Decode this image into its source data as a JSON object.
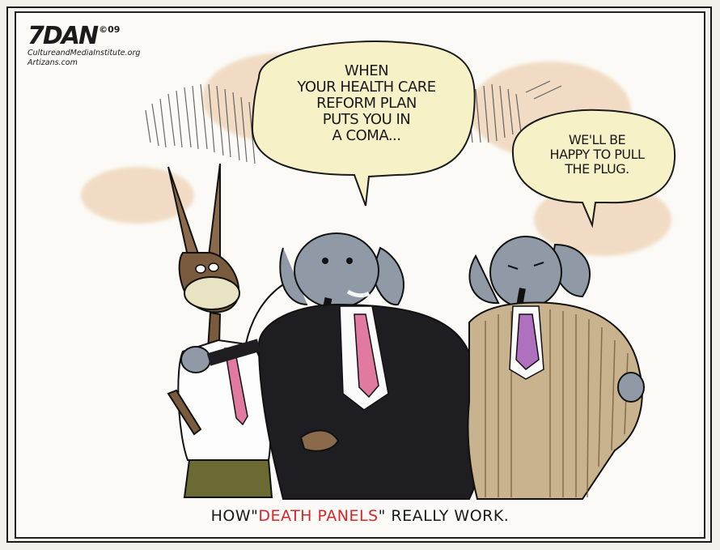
{
  "signature": {
    "artist": "7DAN",
    "year": "©09",
    "line1": "CultureandMediaInstitute.org",
    "line2": "Artizans.com"
  },
  "bubble_left": {
    "lines": [
      "WHEN",
      "YOUR HEALTH CARE",
      "REFORM PLAN",
      "PUTS YOU IN",
      "A COMA..."
    ]
  },
  "bubble_right": {
    "lines": [
      "WE'LL BE",
      "HAPPY TO PULL",
      "THE PLUG."
    ]
  },
  "caption": {
    "prefix": "HOW\"",
    "highlight": "DEATH PANELS",
    "suffix": "\" REALLY WORK."
  },
  "colors": {
    "stain": "#e9c39c",
    "bubble_fill": "#f7f1c8",
    "elephant": "#8f9aa6",
    "donkey": "#8a6a4a",
    "highlight": "#d8262a"
  }
}
